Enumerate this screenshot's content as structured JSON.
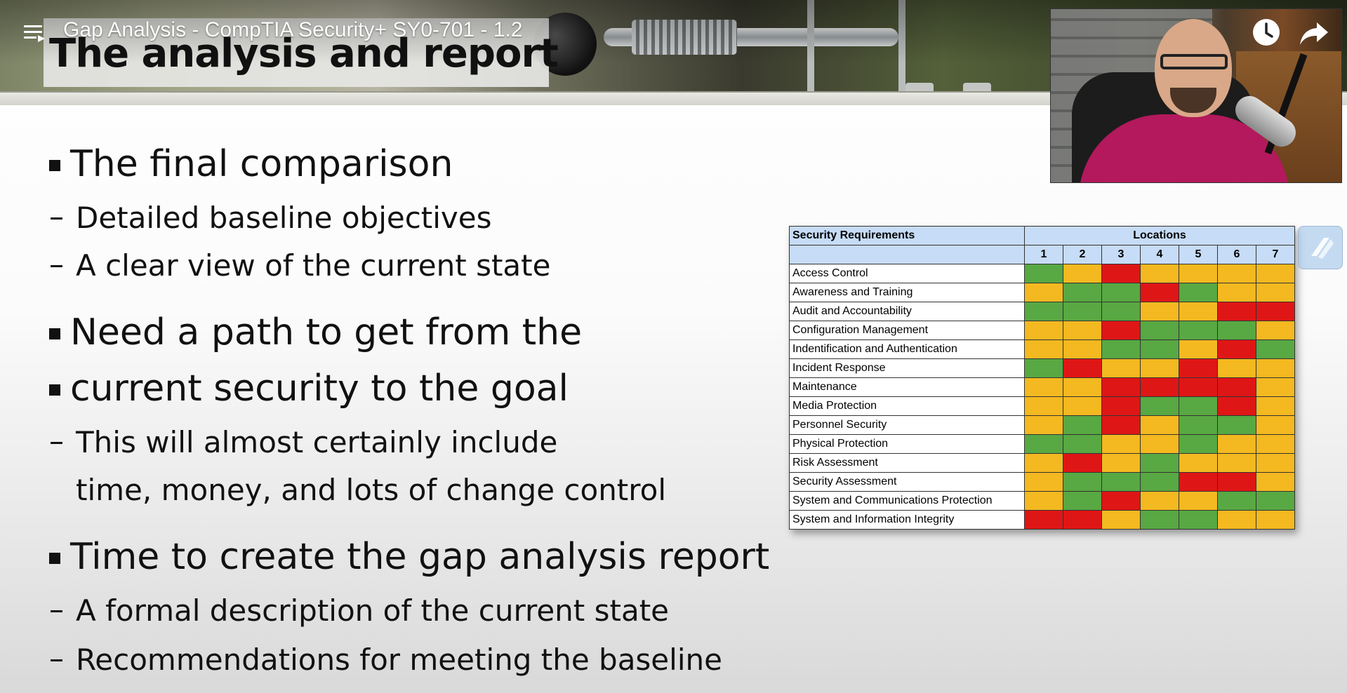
{
  "player": {
    "video_title": "Gap Analysis - CompTIA Security+ SY0-701 - 1.2",
    "playlist_icon": "playlist-icon",
    "watch_later_icon": "clock-icon",
    "share_icon": "share-arrow-icon"
  },
  "slide": {
    "title": "The analysis and report",
    "bullets": [
      {
        "text": "The final comparison",
        "sub": [
          "Detailed baseline objectives",
          "A clear view of the current state"
        ]
      },
      {
        "lines": [
          "Need a path to get from the",
          "current security to the goal"
        ],
        "sub_lines": [
          "This will almost certainly include",
          "time, money, and lots of change control"
        ]
      },
      {
        "text": "Time to create the gap analysis report",
        "sub": [
          "A formal description of the current state",
          "Recommendations for meeting the baseline"
        ]
      }
    ],
    "side_button_icon": "bookmark-icon"
  },
  "table": {
    "header_requirements": "Security Requirements",
    "header_locations": "Locations",
    "locations": [
      "1",
      "2",
      "3",
      "4",
      "5",
      "6",
      "7"
    ],
    "colors": {
      "green": "#58a843",
      "yellow": "#f4b920",
      "red": "#df1616",
      "header": "#c7dcf6"
    },
    "rows": [
      {
        "name": "Access Control",
        "status": [
          "green",
          "yellow",
          "red",
          "yellow",
          "yellow",
          "yellow",
          "yellow"
        ]
      },
      {
        "name": "Awareness and Training",
        "status": [
          "yellow",
          "green",
          "green",
          "red",
          "green",
          "yellow",
          "yellow"
        ]
      },
      {
        "name": "Audit and Accountability",
        "status": [
          "green",
          "green",
          "green",
          "yellow",
          "yellow",
          "red",
          "red"
        ]
      },
      {
        "name": "Configuration Management",
        "status": [
          "yellow",
          "yellow",
          "red",
          "green",
          "green",
          "green",
          "yellow"
        ]
      },
      {
        "name": "Indentification and Authentication",
        "status": [
          "yellow",
          "yellow",
          "green",
          "green",
          "yellow",
          "red",
          "green"
        ]
      },
      {
        "name": "Incident Response",
        "status": [
          "green",
          "red",
          "yellow",
          "yellow",
          "red",
          "yellow",
          "yellow"
        ]
      },
      {
        "name": "Maintenance",
        "status": [
          "yellow",
          "yellow",
          "red",
          "red",
          "red",
          "red",
          "yellow"
        ]
      },
      {
        "name": "Media Protection",
        "status": [
          "yellow",
          "yellow",
          "red",
          "green",
          "green",
          "red",
          "yellow"
        ]
      },
      {
        "name": "Personnel Security",
        "status": [
          "yellow",
          "green",
          "red",
          "yellow",
          "green",
          "green",
          "yellow"
        ]
      },
      {
        "name": "Physical Protection",
        "status": [
          "green",
          "green",
          "yellow",
          "yellow",
          "green",
          "yellow",
          "yellow"
        ]
      },
      {
        "name": "Risk Assessment",
        "status": [
          "yellow",
          "red",
          "yellow",
          "green",
          "yellow",
          "yellow",
          "yellow"
        ]
      },
      {
        "name": "Security Assessment",
        "status": [
          "yellow",
          "green",
          "green",
          "green",
          "red",
          "red",
          "yellow"
        ]
      },
      {
        "name": "System and Communications Protection",
        "status": [
          "yellow",
          "green",
          "red",
          "yellow",
          "yellow",
          "green",
          "green"
        ]
      },
      {
        "name": "System and Information Integrity",
        "status": [
          "red",
          "red",
          "yellow",
          "green",
          "green",
          "yellow",
          "yellow"
        ]
      }
    ]
  }
}
